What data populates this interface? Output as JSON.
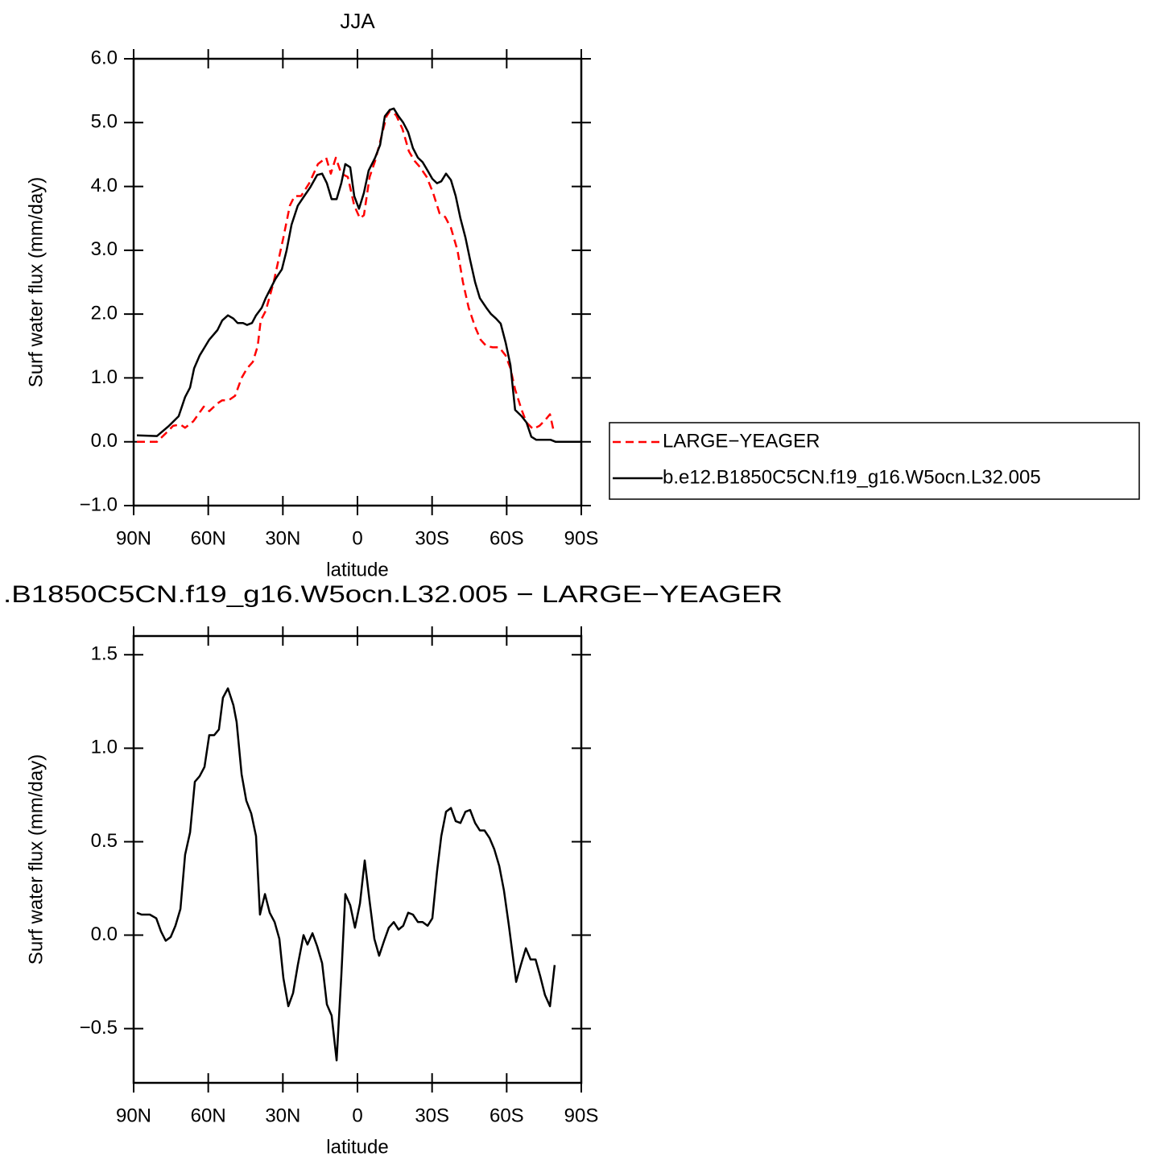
{
  "chart_data": [
    {
      "type": "line",
      "title": "JJA",
      "xlabel": "latitude",
      "ylabel": "Surf water flux (mm/day)",
      "xlim": [
        90,
        -90
      ],
      "xticks": [
        {
          "value": 90,
          "label": "90N"
        },
        {
          "value": 60,
          "label": "60N"
        },
        {
          "value": 30,
          "label": "30N"
        },
        0,
        {
          "value": -30,
          "label": "30S"
        },
        {
          "value": -60,
          "label": "60S"
        },
        {
          "value": -90,
          "label": "90S"
        }
      ],
      "ylim": [
        -1,
        6
      ],
      "yticks": [
        {
          "value": -1,
          "label": "−1.0"
        },
        {
          "value": 0,
          "label": "0.0"
        },
        {
          "value": 1,
          "label": "1.0"
        },
        {
          "value": 2,
          "label": "2.0"
        },
        {
          "value": 3,
          "label": "3.0"
        },
        {
          "value": 4,
          "label": "4.0"
        },
        {
          "value": 5,
          "label": "5.0"
        },
        {
          "value": 6,
          "label": "6.0"
        }
      ],
      "legend": "right",
      "series": [
        {
          "name": "LARGE−YEAGER",
          "color": "#ff0000",
          "dashed": true,
          "x": [
            88.7,
            80.6,
            77.4,
            74.1,
            71.2,
            69.3,
            66,
            61.8,
            59.6,
            56.3,
            54.4,
            51.8,
            49.2,
            46.6,
            44.4,
            42.1,
            40.1,
            38.9,
            36.9,
            33.7,
            29.8,
            27.2,
            25.3,
            22.7,
            19.4,
            15.9,
            12.6,
            10.7,
            8.7,
            6.5,
            3.9,
            1.3,
            -1,
            -2.6,
            -4.9,
            -7.1,
            -9.1,
            -11.7,
            -13,
            -15.5,
            -18.1,
            -20.7,
            -23,
            -25.2,
            -27.8,
            -30.4,
            -33,
            -35.3,
            -37.6,
            -40.2,
            -42.4,
            -44.7,
            -47.3,
            -49.5,
            -51.8,
            -54.4,
            -57,
            -59.6,
            -61.5,
            -63.4,
            -66,
            -68,
            -70.6,
            -73.2,
            -75.7,
            -77.4,
            -79
          ],
          "values": [
            0,
            0,
            0.12,
            0.25,
            0.27,
            0.22,
            0.32,
            0.55,
            0.48,
            0.6,
            0.65,
            0.65,
            0.72,
            1.0,
            1.15,
            1.25,
            1.5,
            1.9,
            2.05,
            2.5,
            3.2,
            3.7,
            3.85,
            3.85,
            4.05,
            4.35,
            4.45,
            4.2,
            4.45,
            4.2,
            4.15,
            3.7,
            3.5,
            3.55,
            4.15,
            4.4,
            4.7,
            5.1,
            5.18,
            5.12,
            4.9,
            4.55,
            4.4,
            4.3,
            4.15,
            3.9,
            3.58,
            3.52,
            3.35,
            3.0,
            2.5,
            2.1,
            1.8,
            1.6,
            1.5,
            1.48,
            1.48,
            1.35,
            1.15,
            0.82,
            0.5,
            0.3,
            0.2,
            0.25,
            0.35,
            0.43,
            0.15
          ]
        },
        {
          "name": "b.e12.B1850C5CN.f19_g16.W5ocn.L32.005",
          "color": "#000000",
          "x": [
            88.7,
            80.6,
            75.8,
            71.9,
            69.3,
            67.3,
            65.7,
            63.5,
            59.6,
            56.3,
            54.4,
            52.1,
            49.9,
            48.2,
            46,
            44.4,
            42.4,
            40.8,
            38.5,
            36.9,
            33,
            30.4,
            28.5,
            26.5,
            24,
            21.4,
            19.1,
            16.2,
            14.2,
            12.3,
            10.4,
            8.4,
            6.5,
            4.9,
            2.9,
            1.3,
            -0.6,
            -2.6,
            -4.5,
            -7.1,
            -9.1,
            -11,
            -13,
            -14.6,
            -16.5,
            -18.4,
            -20.4,
            -22.3,
            -24.3,
            -26.2,
            -28.2,
            -30.1,
            -32,
            -33.7,
            -35.6,
            -37.6,
            -39.5,
            -41.4,
            -43.4,
            -45.3,
            -47.3,
            -49.2,
            -51.8,
            -53.7,
            -55.7,
            -57.6,
            -59.6,
            -61.5,
            -63.4,
            -66,
            -68,
            -69.9,
            -71.9,
            -75.7,
            -77.7,
            -79.6,
            -90
          ],
          "values": [
            0.1,
            0.09,
            0.25,
            0.4,
            0.7,
            0.85,
            1.15,
            1.35,
            1.6,
            1.75,
            1.9,
            1.98,
            1.93,
            1.86,
            1.86,
            1.83,
            1.86,
            1.98,
            2.1,
            2.25,
            2.55,
            2.7,
            3.0,
            3.4,
            3.7,
            3.85,
            3.98,
            4.18,
            4.2,
            4.05,
            3.8,
            3.8,
            4.05,
            4.35,
            4.3,
            3.85,
            3.65,
            3.9,
            4.25,
            4.45,
            4.65,
            5.1,
            5.2,
            5.22,
            5.1,
            5.0,
            4.85,
            4.6,
            4.45,
            4.38,
            4.25,
            4.12,
            4.05,
            4.08,
            4.2,
            4.1,
            3.85,
            3.5,
            3.2,
            2.85,
            2.5,
            2.25,
            2.1,
            2.0,
            1.93,
            1.85,
            1.55,
            1.2,
            0.5,
            0.4,
            0.3,
            0.08,
            0.03,
            0.03,
            0.03,
            0,
            0
          ]
        }
      ]
    },
    {
      "type": "line",
      "title": ".B1850C5CN.f19_g16.W5ocn.L32.005 − LARGE−YEAGER",
      "xlabel": "latitude",
      "ylabel": "Surf water flux (mm/day)",
      "xlim": [
        90,
        -90
      ],
      "xticks": [
        {
          "value": 90,
          "label": "90N"
        },
        {
          "value": 60,
          "label": "60N"
        },
        {
          "value": 30,
          "label": "30N"
        },
        0,
        {
          "value": -30,
          "label": "30S"
        },
        {
          "value": -60,
          "label": "60S"
        },
        {
          "value": -90,
          "label": "90S"
        }
      ],
      "ylim": [
        -0.79,
        1.6
      ],
      "yticks": [
        {
          "value": -0.5,
          "label": "−0.5"
        },
        {
          "value": 0,
          "label": "0.0"
        },
        0.5,
        {
          "value": 1,
          "label": "1.0"
        },
        1.5
      ],
      "series": [
        {
          "color": "#000000",
          "x": [
            88.7,
            86.8,
            83.5,
            80.9,
            79,
            77.1,
            75.1,
            73.2,
            71.2,
            69.3,
            67.3,
            65.4,
            63.5,
            61.5,
            59.6,
            57.6,
            55.7,
            54.1,
            52.1,
            49.9,
            48.6,
            46.6,
            44.7,
            42.7,
            40.8,
            39.2,
            37.2,
            35.3,
            33.3,
            31.4,
            29.8,
            27.8,
            25.9,
            24,
            21.7,
            20.1,
            18.1,
            16.2,
            14.2,
            12.3,
            10.4,
            8.4,
            6.5,
            4.9,
            2.9,
            1,
            -1,
            -2.9,
            -4.9,
            -6.8,
            -8.7,
            -10.7,
            -12.6,
            -14.6,
            -16.5,
            -18.4,
            -20.4,
            -22.3,
            -24.3,
            -26.2,
            -28.2,
            -30.1,
            -32,
            -33.7,
            -35.6,
            -37.6,
            -39.5,
            -41.4,
            -43.4,
            -45.3,
            -47.3,
            -49.2,
            -51.1,
            -53.1,
            -55,
            -57,
            -58.9,
            -60.9,
            -63.8,
            -65.7,
            -67.7,
            -69.6,
            -71.6,
            -73.5,
            -75.4,
            -77.4,
            -79.3
          ],
          "values": [
            0.12,
            0.11,
            0.11,
            0.09,
            0.02,
            -0.03,
            -0.01,
            0.05,
            0.14,
            0.43,
            0.55,
            0.82,
            0.85,
            0.9,
            1.07,
            1.07,
            1.1,
            1.27,
            1.32,
            1.23,
            1.14,
            0.86,
            0.72,
            0.65,
            0.53,
            0.11,
            0.22,
            0.12,
            0.07,
            -0.02,
            -0.23,
            -0.38,
            -0.31,
            -0.16,
            0,
            -0.05,
            0.01,
            -0.06,
            -0.15,
            -0.37,
            -0.43,
            -0.67,
            -0.22,
            0.22,
            0.16,
            0.04,
            0.17,
            0.4,
            0.18,
            -0.02,
            -0.11,
            -0.03,
            0.04,
            0.07,
            0.03,
            0.05,
            0.12,
            0.11,
            0.07,
            0.07,
            0.05,
            0.09,
            0.34,
            0.53,
            0.66,
            0.68,
            0.61,
            0.6,
            0.66,
            0.67,
            0.6,
            0.56,
            0.56,
            0.52,
            0.46,
            0.37,
            0.24,
            0.05,
            -0.25,
            -0.16,
            -0.07,
            -0.13,
            -0.13,
            -0.22,
            -0.32,
            -0.38,
            -0.16
          ]
        }
      ]
    }
  ]
}
